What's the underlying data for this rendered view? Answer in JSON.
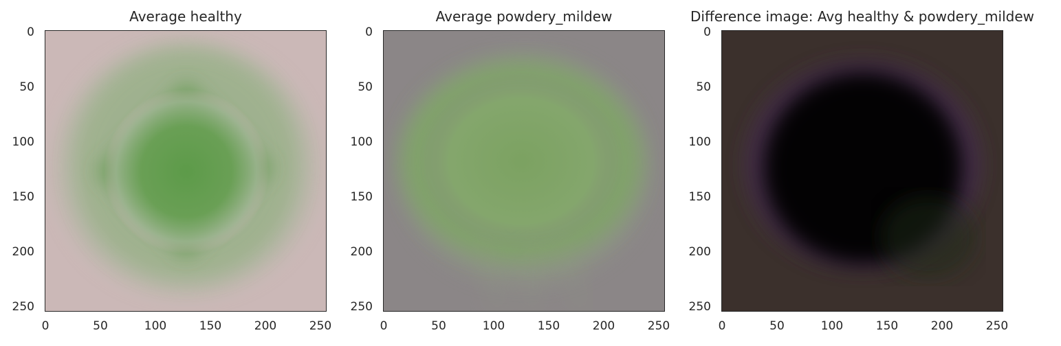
{
  "chart_data": [
    {
      "type": "heatmap",
      "title": "Average healthy",
      "xlim": [
        0,
        256
      ],
      "ylim": [
        256,
        0
      ],
      "xticks": [
        0,
        50,
        100,
        150,
        200,
        250
      ],
      "yticks": [
        0,
        50,
        100,
        150,
        200,
        250
      ],
      "grid": false,
      "colors": {
        "background": "#c9b7b6",
        "leaf": "#5f9a4c"
      }
    },
    {
      "type": "heatmap",
      "title": "Average powdery_mildew",
      "xlim": [
        0,
        256
      ],
      "ylim": [
        256,
        0
      ],
      "xticks": [
        0,
        50,
        100,
        150,
        200,
        250
      ],
      "yticks": [
        0,
        50,
        100,
        150,
        200,
        250
      ],
      "grid": false,
      "colors": {
        "background": "#8a8586",
        "leaf": "#7da464"
      }
    },
    {
      "type": "heatmap",
      "title": "Difference image: Avg healthy & powdery_mildew",
      "xlim": [
        0,
        256
      ],
      "ylim": [
        256,
        0
      ],
      "xticks": [
        0,
        50,
        100,
        150,
        200,
        250
      ],
      "yticks": [
        0,
        50,
        100,
        150,
        200,
        250
      ],
      "grid": false,
      "colors": {
        "background": "#3a2f2b",
        "center": "#050304",
        "ring": "#4a2a52"
      }
    }
  ]
}
